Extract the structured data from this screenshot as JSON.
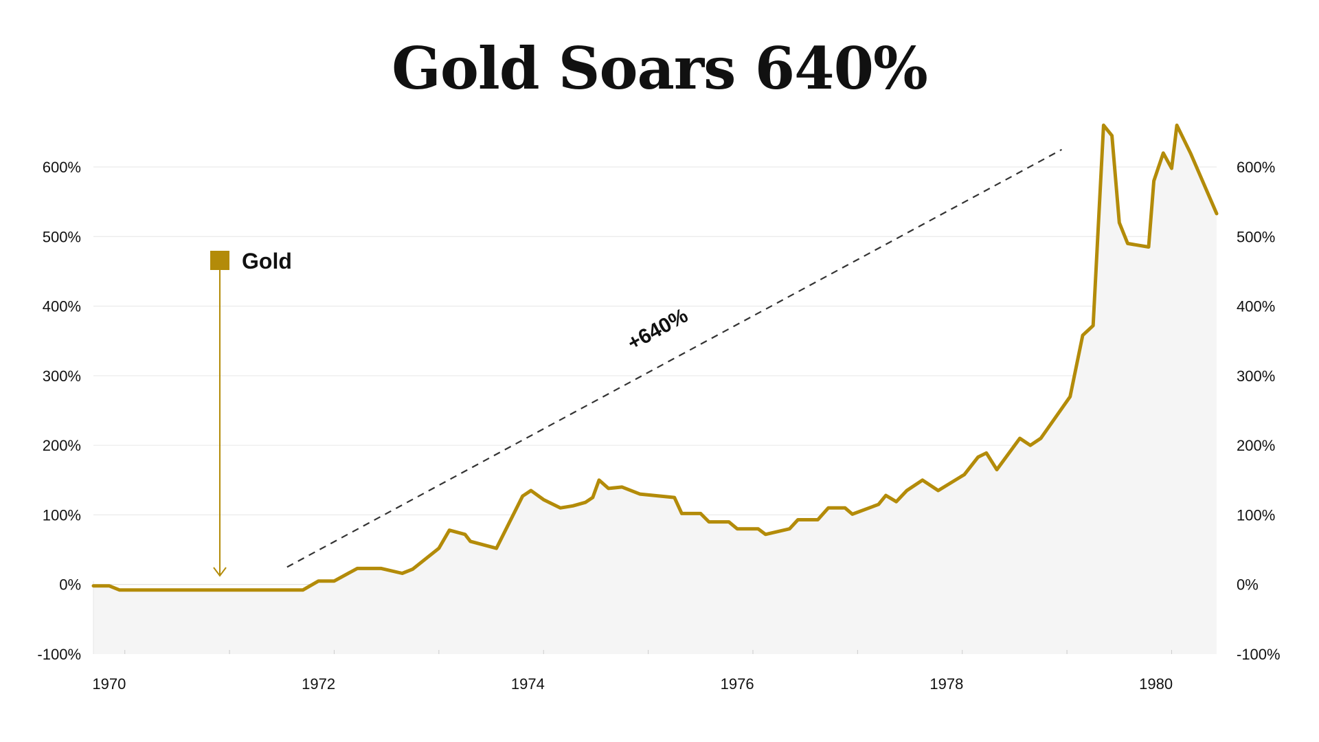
{
  "chart_data": {
    "type": "line",
    "title": "Gold Soars 640%",
    "xlabel": "",
    "ylabel": "",
    "x_ticks": [
      "1970",
      "1972",
      "1974",
      "1976",
      "1978",
      "1980"
    ],
    "y_ticks": [
      "600%",
      "500%",
      "400%",
      "300%",
      "200%",
      "100%",
      "0%",
      "-100%"
    ],
    "y_tick_values": [
      600,
      500,
      400,
      300,
      200,
      100,
      0,
      -100
    ],
    "xlim": [
      1969.9,
      1980.63
    ],
    "ylim": [
      -100,
      680
    ],
    "grid": true,
    "legend_position": "top-left",
    "color": "#b38b09",
    "series": [
      {
        "name": "Gold",
        "x": [
          1969.9,
          1970.05,
          1970.15,
          1971.9,
          1972.05,
          1972.2,
          1972.42,
          1972.65,
          1972.85,
          1972.95,
          1973.2,
          1973.3,
          1973.45,
          1973.5,
          1973.75,
          1974.0,
          1974.08,
          1974.2,
          1974.36,
          1974.48,
          1974.6,
          1974.67,
          1974.73,
          1974.82,
          1974.95,
          1975.12,
          1975.45,
          1975.52,
          1975.7,
          1975.78,
          1975.97,
          1976.05,
          1976.25,
          1976.32,
          1976.55,
          1976.63,
          1976.82,
          1976.92,
          1977.08,
          1977.15,
          1977.4,
          1977.47,
          1977.57,
          1977.67,
          1977.82,
          1977.97,
          1978.22,
          1978.35,
          1978.43,
          1978.53,
          1978.75,
          1978.85,
          1978.95,
          1979.23,
          1979.35,
          1979.45,
          1979.55,
          1979.63,
          1979.7,
          1979.78,
          1979.98,
          1980.03,
          1980.12,
          1980.2,
          1980.25,
          1980.38,
          1980.63
        ],
        "values": [
          -2,
          -2,
          -8,
          -8,
          5,
          5,
          23,
          23,
          16,
          22,
          52,
          78,
          72,
          62,
          52,
          127,
          135,
          122,
          110,
          113,
          118,
          125,
          150,
          138,
          140,
          130,
          125,
          102,
          102,
          90,
          90,
          80,
          80,
          72,
          80,
          93,
          93,
          110,
          110,
          101,
          115,
          128,
          119,
          135,
          150,
          135,
          158,
          183,
          189,
          165,
          210,
          200,
          210,
          270,
          358,
          372,
          660,
          645,
          520,
          490,
          485,
          580,
          620,
          598,
          660,
          620,
          533
        ]
      }
    ],
    "annotations": [
      {
        "text": "+640%",
        "x_start": 1971.75,
        "y_start": 25,
        "x_end": 1979.15,
        "y_end": 625
      }
    ]
  }
}
